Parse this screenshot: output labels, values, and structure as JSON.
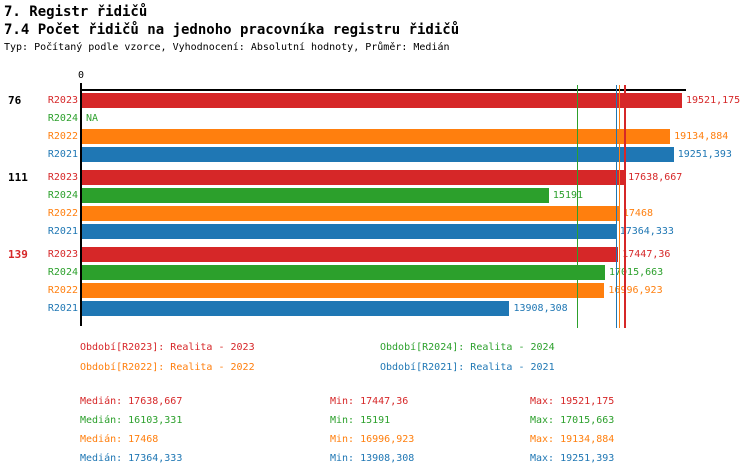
{
  "header": {
    "title": "7. Registr řidičů",
    "subtitle": "7.4 Počet řidičů na jednoho pracovníka registru řidičů",
    "meta": "Typ: Počítaný podle vzorce, Vyhodnocení: Absolutní hodnoty, Průměr: Medián"
  },
  "colors": {
    "r2023": "#d62728",
    "r2024": "#2ca02c",
    "r2022": "#ff7f0e",
    "r2021": "#1f77b4",
    "axis": "#000000"
  },
  "chart_data": {
    "type": "bar",
    "orientation": "horizontal",
    "value_axis": {
      "tick_label": "0",
      "min": 0,
      "max": 19650
    },
    "series_order": [
      "R2023",
      "R2024",
      "R2022",
      "R2021"
    ],
    "series_colors": {
      "R2023": "#d62728",
      "R2024": "#2ca02c",
      "R2022": "#ff7f0e",
      "R2021": "#1f77b4"
    },
    "groups": [
      {
        "label": "76",
        "label_color": "#000000",
        "bars": [
          {
            "series": "R2023",
            "value": 19521.175,
            "display": "19521,175"
          },
          {
            "series": "R2024",
            "value": null,
            "display": "NA"
          },
          {
            "series": "R2022",
            "value": 19134.884,
            "display": "19134,884"
          },
          {
            "series": "R2021",
            "value": 19251.393,
            "display": "19251,393"
          }
        ]
      },
      {
        "label": "111",
        "label_color": "#000000",
        "bars": [
          {
            "series": "R2023",
            "value": 17638.667,
            "display": "17638,667"
          },
          {
            "series": "R2024",
            "value": 15191,
            "display": "15191"
          },
          {
            "series": "R2022",
            "value": 17468,
            "display": "17468"
          },
          {
            "series": "R2021",
            "value": 17364.333,
            "display": "17364,333"
          }
        ]
      },
      {
        "label": "139",
        "label_color": "#d62728",
        "bars": [
          {
            "series": "R2023",
            "value": 17447.36,
            "display": "17447,36"
          },
          {
            "series": "R2024",
            "value": 17015.663,
            "display": "17015,663"
          },
          {
            "series": "R2022",
            "value": 16996.923,
            "display": "16996,923"
          },
          {
            "series": "R2021",
            "value": 13908.308,
            "display": "13908,308"
          }
        ]
      }
    ],
    "median_lines": [
      {
        "series": "R2024",
        "value": 16103.331,
        "color": "#2ca02c"
      },
      {
        "series": "R2021",
        "value": 17364.333,
        "color": "#1f77b4"
      },
      {
        "series": "R2022",
        "value": 17468,
        "color": "#ff7f0e"
      },
      {
        "series": "R2023",
        "value": 17638.667,
        "color": "#d62728"
      }
    ]
  },
  "legend": {
    "items": [
      {
        "text": "Období[R2023]: Realita - 2023",
        "color": "#d62728"
      },
      {
        "text": "Období[R2024]: Realita - 2024",
        "color": "#2ca02c"
      },
      {
        "text": "Období[R2022]: Realita - 2022",
        "color": "#ff7f0e"
      },
      {
        "text": "Období[R2021]: Realita - 2021",
        "color": "#1f77b4"
      }
    ]
  },
  "stats": {
    "labels": {
      "median": "Medián:",
      "min": "Min:",
      "max": "Max:"
    },
    "rows": [
      {
        "series": "R2023",
        "color": "#d62728",
        "median": "17638,667",
        "min": "17447,36",
        "max": "19521,175"
      },
      {
        "series": "R2024",
        "color": "#2ca02c",
        "median": "16103,331",
        "min": "15191",
        "max": "17015,663"
      },
      {
        "series": "R2022",
        "color": "#ff7f0e",
        "median": "17468",
        "min": "16996,923",
        "max": "19134,884"
      },
      {
        "series": "R2021",
        "color": "#1f77b4",
        "median": "17364,333",
        "min": "13908,308",
        "max": "19251,393"
      }
    ]
  }
}
